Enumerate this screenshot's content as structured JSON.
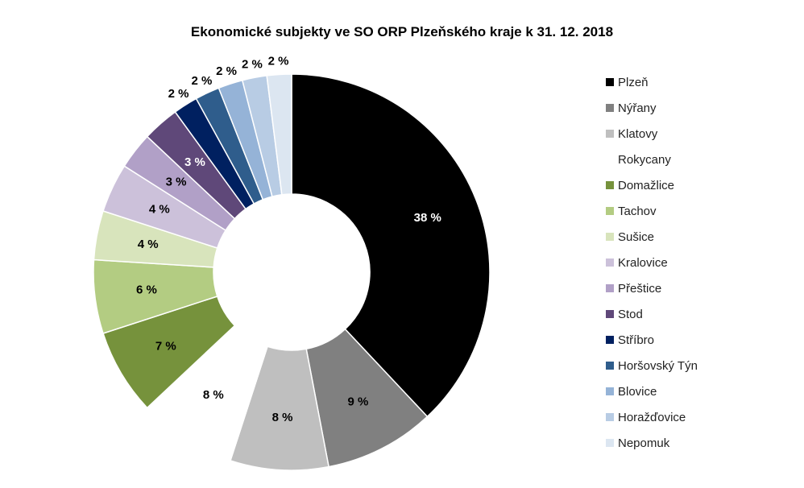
{
  "chart_data": {
    "type": "pie",
    "variant": "doughnut",
    "title": "Ekonomické subjekty ve SO ORP Plzeňského kraje k 31. 12. 2018",
    "legend_position": "right",
    "slices": [
      {
        "name": "Plzeň",
        "value": 38,
        "label": "38 %",
        "color": "#000000",
        "label_color": "#ffffff"
      },
      {
        "name": "Nýřany",
        "value": 9,
        "label": "9 %",
        "color": "#808080",
        "label_color": "#000000"
      },
      {
        "name": "Klatovy",
        "value": 8,
        "label": "8 %",
        "color": "#bfbfbf",
        "label_color": "#000000"
      },
      {
        "name": "Rokycany",
        "value": 8,
        "label": "8 %",
        "color": "#ffffff",
        "label_color": "#000000"
      },
      {
        "name": "Domažlice",
        "value": 7,
        "label": "7 %",
        "color": "#76923c",
        "label_color": "#000000"
      },
      {
        "name": "Tachov",
        "value": 6,
        "label": "6 %",
        "color": "#b3cc82",
        "label_color": "#000000"
      },
      {
        "name": "Sušice",
        "value": 4,
        "label": "4 %",
        "color": "#d8e4bc",
        "label_color": "#000000"
      },
      {
        "name": "Kralovice",
        "value": 4,
        "label": "4 %",
        "color": "#ccc1da",
        "label_color": "#000000"
      },
      {
        "name": "Přeštice",
        "value": 3,
        "label": "3 %",
        "color": "#b1a0c7",
        "label_color": "#000000"
      },
      {
        "name": "Stod",
        "value": 3,
        "label": "3 %",
        "color": "#5f4879",
        "label_color": "#ffffff"
      },
      {
        "name": "Stříbro",
        "value": 2,
        "label": "2 %",
        "color": "#002060",
        "label_color": "#ffffff"
      },
      {
        "name": "Horšovský Týn",
        "value": 2,
        "label": "2 %",
        "color": "#2f5d8c",
        "label_color": "#000000"
      },
      {
        "name": "Blovice",
        "value": 2,
        "label": "2 %",
        "color": "#95b3d7",
        "label_color": "#000000"
      },
      {
        "name": "Horažďovice",
        "value": 2,
        "label": "2 %",
        "color": "#b8cce4",
        "label_color": "#000000"
      },
      {
        "name": "Nepomuk",
        "value": 2,
        "label": "2 %",
        "color": "#dce6f1",
        "label_color": "#000000"
      }
    ]
  }
}
